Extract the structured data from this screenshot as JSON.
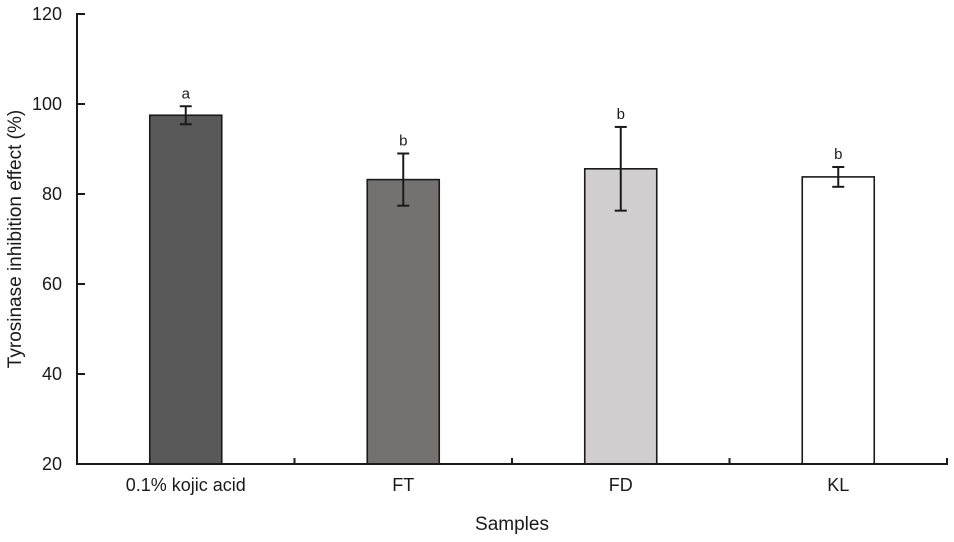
{
  "chart_data": {
    "type": "bar",
    "title": "",
    "xlabel": "Samples",
    "ylabel": "Tyrosinase inhibition effect (%)",
    "categories": [
      "0.1% kojic acid",
      "FT",
      "FD",
      "KL"
    ],
    "values": [
      97.5,
      83.2,
      85.6,
      83.8
    ],
    "error_bars": [
      2.0,
      5.8,
      9.3,
      2.2
    ],
    "sig_labels": [
      "a",
      "b",
      "b",
      "b"
    ],
    "bar_colors": [
      "#595959",
      "#767171",
      "#d0cece",
      "#ffffff"
    ],
    "bar_border_color": "#1a1a1a",
    "axis_color": "#1a1a1a",
    "ylim": [
      20,
      120
    ],
    "yticks": [
      20,
      40,
      60,
      80,
      100,
      120
    ],
    "grid": false,
    "legend": false
  }
}
